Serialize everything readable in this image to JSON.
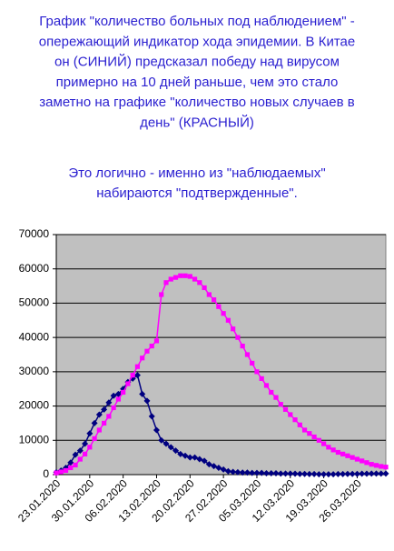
{
  "chart_data": {
    "type": "line",
    "notes": [
      [
        "График \"количество больных под наблюдением\" -",
        "опережающий индикатор хода эпидемии. В Китае",
        "он (СИНИЙ) предсказал победу над вирусом",
        "примерно на 10 дней раньше, чем это стало",
        "заметно на графике \"количество новых случаев в",
        "день\" (КРАСНЫЙ)"
      ],
      [
        "Это логично - именно из \"наблюдаемых\"",
        "набираются \"подтвержденные\"."
      ]
    ],
    "categories": [
      "23.01.2020",
      null,
      null,
      null,
      null,
      null,
      null,
      "30.01.2020",
      null,
      null,
      null,
      null,
      null,
      null,
      "06.02.2020",
      null,
      null,
      null,
      null,
      null,
      null,
      "13.02.2020",
      null,
      null,
      null,
      null,
      null,
      null,
      "20.02.2020",
      null,
      null,
      null,
      null,
      null,
      null,
      "27.02.2020",
      null,
      null,
      null,
      null,
      null,
      null,
      "05.03.2020",
      null,
      null,
      null,
      null,
      null,
      null,
      "12.03.2020",
      null,
      null,
      null,
      null,
      null,
      null,
      "19.03.2020",
      null,
      null,
      null,
      null,
      null,
      null,
      "26.03.2020",
      null,
      null,
      null,
      null,
      null,
      null
    ],
    "series": [
      {
        "color": "#000080",
        "marker": "diamond",
        "values": [
          700,
          1200,
          2000,
          3500,
          5800,
          7000,
          9000,
          12000,
          15000,
          17500,
          19000,
          21000,
          23000,
          23500,
          25000,
          27000,
          28000,
          29000,
          23500,
          21500,
          17000,
          13000,
          10000,
          9000,
          8000,
          7000,
          6000,
          5500,
          5000,
          5000,
          4500,
          4000,
          3000,
          2500,
          2000,
          1500,
          1000,
          800,
          700,
          600,
          600,
          500,
          500,
          500,
          400,
          400,
          400,
          300,
          300,
          300,
          250,
          200,
          200,
          150,
          150,
          100,
          100,
          100,
          100,
          150,
          150,
          200,
          200,
          200,
          250,
          250,
          300,
          300,
          300,
          300
        ]
      },
      {
        "color": "#ff00ff",
        "marker": "square",
        "values": [
          500,
          800,
          1200,
          2000,
          2800,
          4500,
          6000,
          8000,
          10500,
          13000,
          15000,
          17000,
          19500,
          22000,
          24000,
          26500,
          29000,
          31500,
          34000,
          36000,
          37500,
          39000,
          52500,
          56000,
          57000,
          57500,
          58000,
          58000,
          57800,
          57000,
          56000,
          54500,
          52500,
          51000,
          49000,
          47000,
          45000,
          42500,
          40000,
          37500,
          35000,
          32500,
          30000,
          28000,
          26000,
          24000,
          22500,
          20500,
          19000,
          17500,
          16000,
          14500,
          13000,
          12000,
          11000,
          10000,
          9000,
          8000,
          7200,
          6500,
          6000,
          5500,
          5000,
          4500,
          4000,
          3500,
          3000,
          2700,
          2400,
          2200
        ]
      }
    ],
    "ylim": [
      0,
      70000
    ],
    "yticks": [
      0,
      10000,
      20000,
      30000,
      40000,
      50000,
      60000,
      70000
    ],
    "grid": true,
    "plot_background": "#c0c0c0"
  }
}
